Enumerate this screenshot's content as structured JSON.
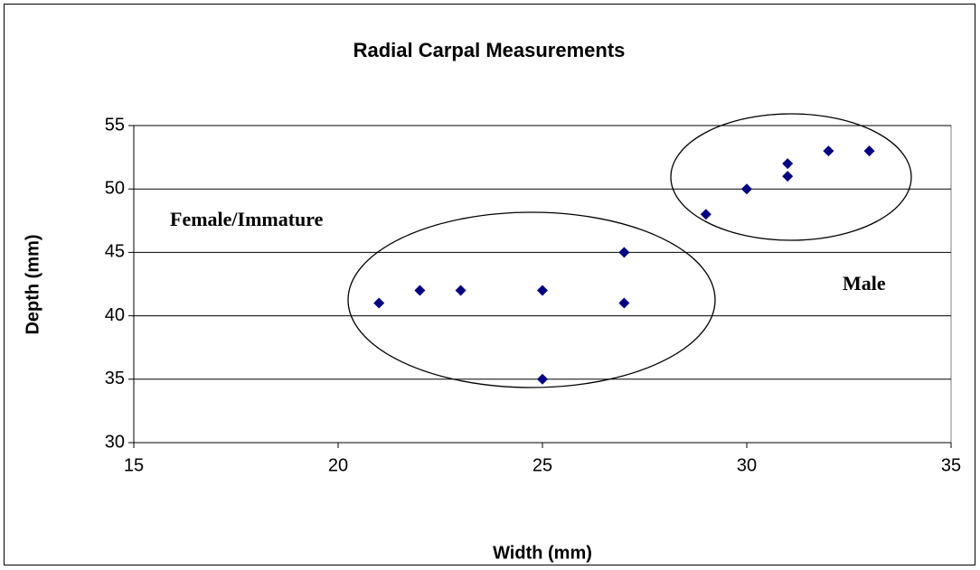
{
  "chart_data": {
    "type": "scatter",
    "title": "Radial Carpal Measurements",
    "x_label": "Width (mm)",
    "y_label": "Depth (mm)",
    "x": [
      21,
      22,
      23,
      25,
      25,
      27,
      27,
      29,
      30,
      31,
      31,
      32,
      33
    ],
    "values": [
      41,
      42,
      42,
      42,
      35,
      45,
      41,
      48,
      50,
      52,
      51,
      53,
      53
    ],
    "color": "#000080",
    "xlim": [
      15,
      35
    ],
    "xticks": [
      15,
      20,
      25,
      30,
      35
    ],
    "ylim": [
      30,
      55
    ],
    "yticks": [
      30,
      35,
      40,
      45,
      50,
      55
    ],
    "grid": true,
    "annotations": [
      "Female/Immature",
      "Male"
    ]
  }
}
